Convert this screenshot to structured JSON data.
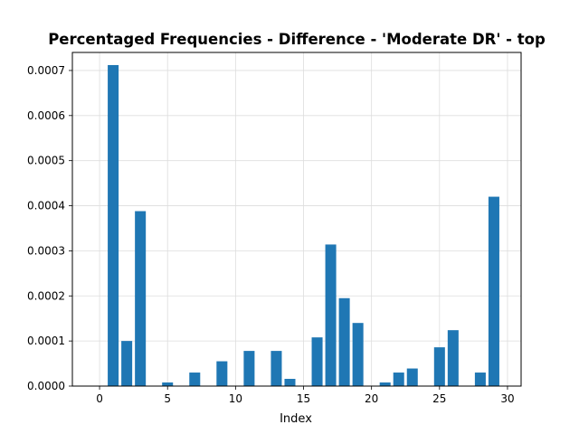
{
  "chart_data": {
    "type": "bar",
    "title": "Percentaged Frequencies - Difference - 'Moderate DR' - top",
    "xlabel": "Index",
    "ylabel": "",
    "xlim": [
      -2,
      31
    ],
    "ylim": [
      0,
      0.00074
    ],
    "grid": true,
    "bar_color": "#1f77b4",
    "grid_color": "#dddddd",
    "x_ticks": [
      0,
      5,
      10,
      15,
      20,
      25,
      30
    ],
    "x_tick_labels": [
      "0",
      "5",
      "10",
      "15",
      "20",
      "25",
      "30"
    ],
    "y_ticks": [
      0,
      0.0001,
      0.0002,
      0.0003,
      0.0004,
      0.0005,
      0.0006,
      0.0007
    ],
    "y_tick_labels": [
      "0.0000",
      "0.0001",
      "0.0002",
      "0.0003",
      "0.0004",
      "0.0005",
      "0.0006",
      "0.0007"
    ],
    "x": [
      1,
      2,
      3,
      5,
      7,
      9,
      11,
      13,
      14,
      16,
      17,
      18,
      19,
      21,
      22,
      23,
      25,
      26,
      28,
      29
    ],
    "values": [
      0.000712,
      0.0001,
      0.000388,
      8e-06,
      3e-05,
      5.5e-05,
      7.8e-05,
      7.8e-05,
      1.6e-05,
      0.000108,
      0.000314,
      0.000195,
      0.00014,
      8e-06,
      3e-05,
      3.9e-05,
      8.6e-05,
      0.000124,
      3e-05,
      0.00042
    ]
  }
}
